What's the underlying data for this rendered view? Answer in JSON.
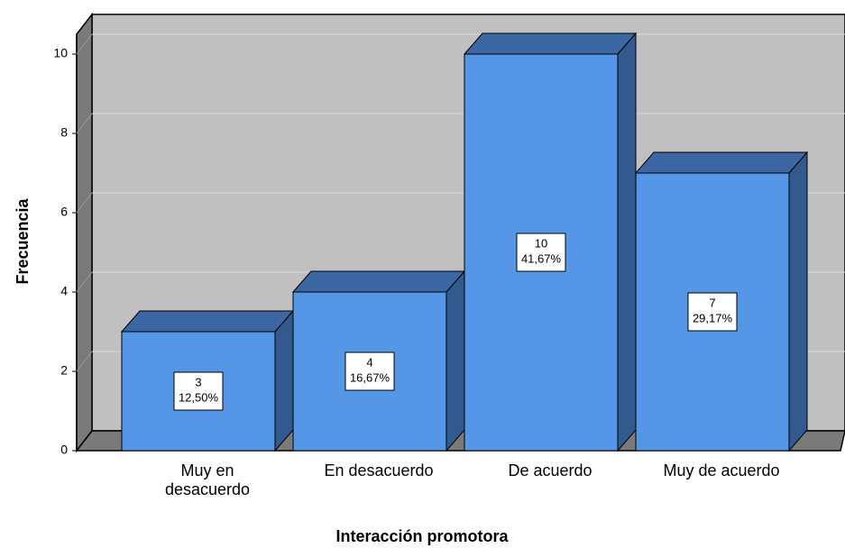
{
  "chart_data": {
    "type": "bar3d",
    "x_label": "Interacción promotora",
    "y_label": "Frecuencia",
    "categories": [
      "Muy en desacuerdo",
      "En desacuerdo",
      "De acuerdo",
      "Muy de acuerdo"
    ],
    "values": [
      3,
      4,
      10,
      7
    ],
    "percentages": [
      12.5,
      16.67,
      41.67,
      29.17
    ],
    "percentage_labels": [
      "12,50%",
      "16,67%",
      "41,67%",
      "29,17%"
    ],
    "color": "#5596e6",
    "ylim": [
      0,
      10.5
    ],
    "yticks": [
      0,
      2,
      4,
      6,
      8,
      10
    ],
    "grid": true
  }
}
